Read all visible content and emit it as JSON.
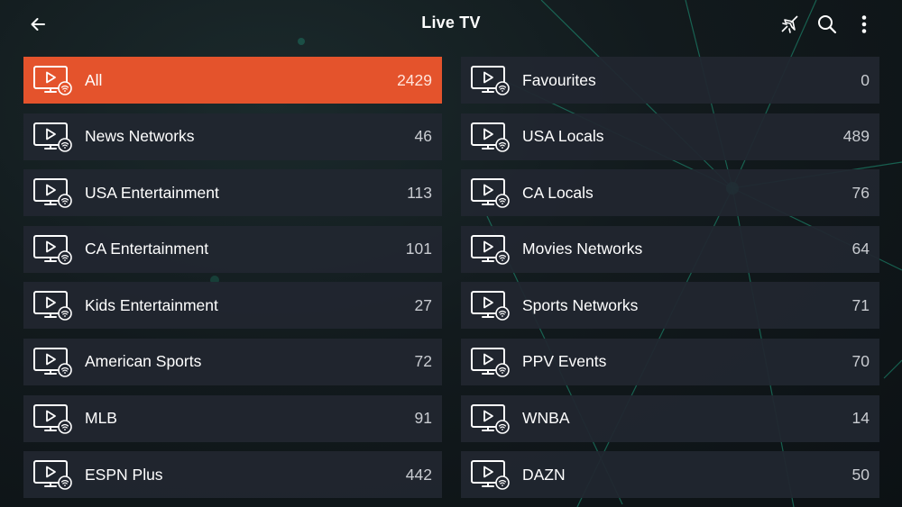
{
  "header": {
    "title": "Live TV",
    "back_icon": "arrow-left-icon",
    "actions": [
      "airplane-icon",
      "search-icon",
      "more-vert-icon"
    ]
  },
  "colors": {
    "accent": "#e4532c",
    "tile_bg": "#212630",
    "background": "#121a1d",
    "network_lines": "#1f9e7e"
  },
  "categories": [
    {
      "label": "All",
      "count": "2429",
      "active": true
    },
    {
      "label": "Favourites",
      "count": "0"
    },
    {
      "label": "News Networks",
      "count": "46"
    },
    {
      "label": "USA Locals",
      "count": "489"
    },
    {
      "label": "USA Entertainment",
      "count": "113"
    },
    {
      "label": "CA Locals",
      "count": "76"
    },
    {
      "label": "CA Entertainment",
      "count": "101"
    },
    {
      "label": "Movies Networks",
      "count": "64"
    },
    {
      "label": "Kids Entertainment",
      "count": "27"
    },
    {
      "label": "Sports Networks",
      "count": "71"
    },
    {
      "label": "American Sports",
      "count": "72"
    },
    {
      "label": "PPV Events",
      "count": "70"
    },
    {
      "label": "MLB",
      "count": "91"
    },
    {
      "label": "WNBA",
      "count": "14"
    },
    {
      "label": "ESPN Plus",
      "count": "442"
    },
    {
      "label": "DAZN",
      "count": "50"
    }
  ]
}
